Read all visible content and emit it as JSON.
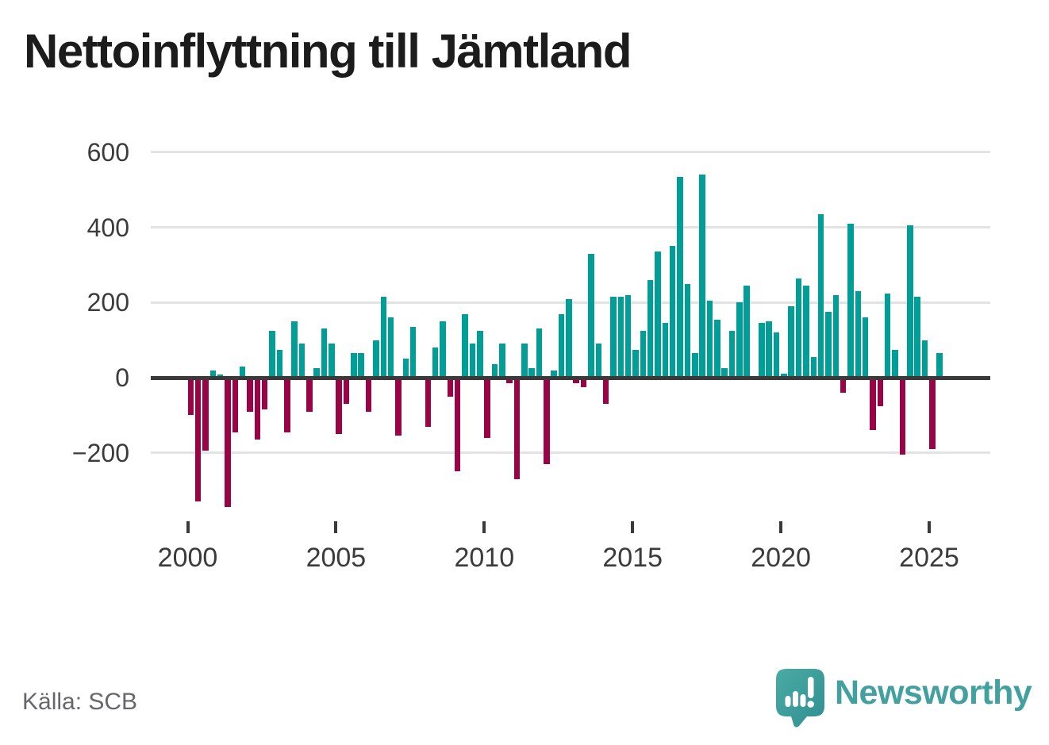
{
  "title": "Nettoinflyttning till Jämtland",
  "source": "Källa: SCB",
  "brand": {
    "name": "Newsworthy",
    "icon": "newsworthy-speech-bubble-bar-chart"
  },
  "colors": {
    "positive_bar": "#009e96",
    "negative_bar": "#9b0347",
    "axis_line": "#3a3a3a",
    "gridline": "#e3e3e3",
    "title_text": "#1c1c1c",
    "tick_text": "#3b3b3b",
    "source_text": "#66666b",
    "brand_teal": "#42a09f"
  },
  "y_axis": {
    "tick_labels": [
      "600",
      "400",
      "200",
      "0",
      "−200"
    ],
    "tick_values": [
      600,
      400,
      200,
      0,
      -200
    ]
  },
  "x_axis": {
    "tick_labels": [
      "2000",
      "2005",
      "2010",
      "2015",
      "2020",
      "2025"
    ],
    "tick_values": [
      2000,
      2005,
      2010,
      2015,
      2020,
      2025
    ]
  },
  "chart_data": {
    "type": "bar",
    "title": "Nettoinflyttning till Jämtland",
    "xlabel": "",
    "ylabel": "",
    "frequency": "quarterly",
    "x_start": "2000-Q1",
    "x_end": "2025-Q2",
    "ylim": [
      -400,
      650
    ],
    "grid": "horizontal",
    "legend": "none",
    "positive_color": "#009e96",
    "negative_color": "#9b0347",
    "values": [
      -100,
      -330,
      -195,
      20,
      8,
      -345,
      -145,
      30,
      -90,
      -165,
      -85,
      125,
      75,
      -145,
      150,
      90,
      -90,
      25,
      130,
      90,
      -150,
      -70,
      65,
      65,
      -90,
      100,
      215,
      160,
      -155,
      50,
      135,
      0,
      -130,
      80,
      150,
      -50,
      -250,
      170,
      90,
      125,
      -160,
      35,
      90,
      -15,
      -270,
      90,
      25,
      130,
      -230,
      20,
      170,
      210,
      -15,
      -25,
      330,
      90,
      -70,
      215,
      215,
      220,
      75,
      125,
      260,
      335,
      145,
      350,
      535,
      250,
      65,
      540,
      205,
      155,
      25,
      125,
      200,
      245,
      0,
      145,
      150,
      120,
      10,
      190,
      265,
      245,
      55,
      435,
      175,
      220,
      -40,
      410,
      230,
      160,
      -140,
      -75,
      225,
      75,
      -205,
      405,
      215,
      100,
      -190,
      65
    ]
  }
}
